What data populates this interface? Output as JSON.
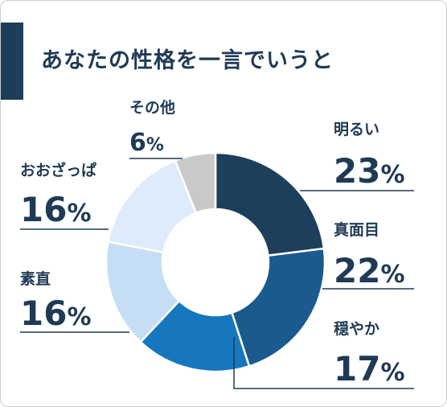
{
  "title": "あなたの性格を一言でいうと",
  "colors": {
    "accent": "#1e3d58",
    "text": "#1f3a55",
    "leader": "#1f3a55",
    "slices": [
      "#1e3f5b",
      "#1b5a8e",
      "#1677be",
      "#c6def5",
      "#deebfb",
      "#c9c9c9"
    ]
  },
  "chart_data": {
    "type": "pie",
    "variant": "donut",
    "title": "あなたの性格を一言でいうと",
    "categories": [
      "明るい",
      "真面目",
      "穏やか",
      "素直",
      "おおざっぱ",
      "その他"
    ],
    "values": [
      23,
      22,
      17,
      16,
      16,
      6
    ],
    "value_suffix": "%"
  }
}
